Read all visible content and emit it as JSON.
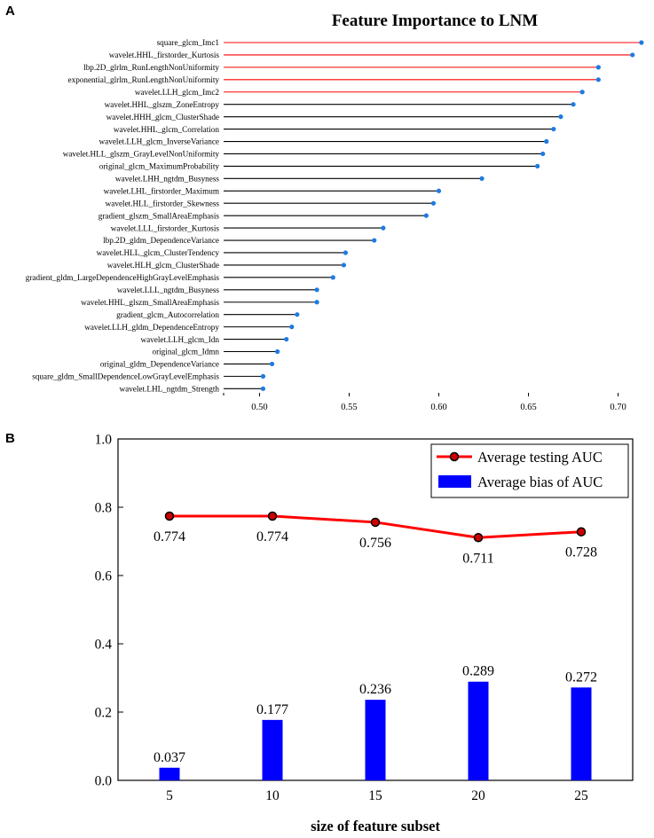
{
  "panel_a": {
    "letter": "A",
    "title": "Feature Importance to LNM"
  },
  "panel_b": {
    "letter": "B",
    "xlabel": "size of feature subset"
  },
  "colors": {
    "highlight": "#ff0000",
    "normal_stem": "#000000",
    "dot": "#1e7be0",
    "line": "#ff0000",
    "marker_face": "#cc0000",
    "bar": "#0000ff"
  },
  "chart_data": [
    {
      "type": "lollipop",
      "title": "Feature Importance to LNM",
      "xlim": [
        0.48,
        0.72
      ],
      "xticks": [
        "0.50",
        "0.55",
        "0.60",
        "0.65",
        "0.70"
      ],
      "xtick_values": [
        0.5,
        0.55,
        0.6,
        0.65,
        0.7
      ],
      "features": [
        {
          "name": "square_glcm_Imc1",
          "value": 0.713,
          "highlight": true
        },
        {
          "name": "wavelet.HHL_firstorder_Kurtosis",
          "value": 0.708,
          "highlight": true
        },
        {
          "name": "lbp.2D_glrlm_RunLengthNonUniformity",
          "value": 0.689,
          "highlight": true
        },
        {
          "name": "exponential_glrlm_RunLengthNonUniformity",
          "value": 0.689,
          "highlight": true
        },
        {
          "name": "wavelet.LLH_glcm_Imc2",
          "value": 0.68,
          "highlight": true
        },
        {
          "name": "wavelet.HHL_glszm_ZoneEntropy",
          "value": 0.675,
          "highlight": false
        },
        {
          "name": "wavelet.HHH_glcm_ClusterShade",
          "value": 0.668,
          "highlight": false
        },
        {
          "name": "wavelet.HHL_glcm_Correlation",
          "value": 0.664,
          "highlight": false
        },
        {
          "name": "wavelet.LLH_glcm_InverseVariance",
          "value": 0.66,
          "highlight": false
        },
        {
          "name": "wavelet.HLL_glszm_GrayLevelNonUniformity",
          "value": 0.658,
          "highlight": false
        },
        {
          "name": "original_glcm_MaximumProbability",
          "value": 0.655,
          "highlight": false
        },
        {
          "name": "wavelet.LHH_ngtdm_Busyness",
          "value": 0.624,
          "highlight": false
        },
        {
          "name": "wavelet.LHL_firstorder_Maximum",
          "value": 0.6,
          "highlight": false
        },
        {
          "name": "wavelet.HLL_firstorder_Skewness",
          "value": 0.597,
          "highlight": false
        },
        {
          "name": "gradient_glszm_SmallAreaEmphasis",
          "value": 0.593,
          "highlight": false
        },
        {
          "name": "wavelet.LLL_firstorder_Kurtosis",
          "value": 0.569,
          "highlight": false
        },
        {
          "name": "lbp.2D_gldm_DependenceVariance",
          "value": 0.564,
          "highlight": false
        },
        {
          "name": "wavelet.HLL_glcm_ClusterTendency",
          "value": 0.548,
          "highlight": false
        },
        {
          "name": "wavelet.HLH_glcm_ClusterShade",
          "value": 0.547,
          "highlight": false
        },
        {
          "name": "gradient_gldm_LargeDependenceHighGrayLevelEmphasis",
          "value": 0.541,
          "highlight": false
        },
        {
          "name": "wavelet.LLL_ngtdm_Busyness",
          "value": 0.532,
          "highlight": false
        },
        {
          "name": "wavelet.HHL_glszm_SmallAreaEmphasis",
          "value": 0.532,
          "highlight": false
        },
        {
          "name": "gradient_glcm_Autocorrelation",
          "value": 0.521,
          "highlight": false
        },
        {
          "name": "wavelet.LLH_gldm_DependenceEntropy",
          "value": 0.518,
          "highlight": false
        },
        {
          "name": "wavelet.LLH_glcm_Idn",
          "value": 0.515,
          "highlight": false
        },
        {
          "name": "original_glcm_Idmn",
          "value": 0.51,
          "highlight": false
        },
        {
          "name": "original_gldm_DependenceVariance",
          "value": 0.507,
          "highlight": false
        },
        {
          "name": "square_gldm_SmallDependenceLowGrayLevelEmphasis",
          "value": 0.502,
          "highlight": false
        },
        {
          "name": "wavelet.LHL_ngtdm_Strength",
          "value": 0.502,
          "highlight": false
        }
      ]
    },
    {
      "type": "bar+line",
      "title": "",
      "xlabel": "size of feature subset",
      "ylabel": "",
      "ylim": [
        0.0,
        1.0
      ],
      "yticks": [
        "0.0",
        "0.2",
        "0.4",
        "0.6",
        "0.8",
        "1.0"
      ],
      "ytick_values": [
        0.0,
        0.2,
        0.4,
        0.6,
        0.8,
        1.0
      ],
      "categories": [
        "5",
        "10",
        "15",
        "20",
        "25"
      ],
      "category_values": [
        5,
        10,
        15,
        20,
        25
      ],
      "xlim": [
        2.5,
        27.5
      ],
      "series": [
        {
          "name": "Average testing AUC",
          "type": "line",
          "values": [
            0.774,
            0.774,
            0.756,
            0.711,
            0.728
          ],
          "labels": [
            "0.774",
            "0.774",
            "0.756",
            "0.711",
            "0.728"
          ]
        },
        {
          "name": "Average bias of AUC",
          "type": "bar",
          "values": [
            0.037,
            0.177,
            0.236,
            0.289,
            0.272
          ],
          "labels": [
            "0.037",
            "0.177",
            "0.236",
            "0.289",
            "0.272"
          ]
        }
      ],
      "legend": "top-right"
    }
  ]
}
